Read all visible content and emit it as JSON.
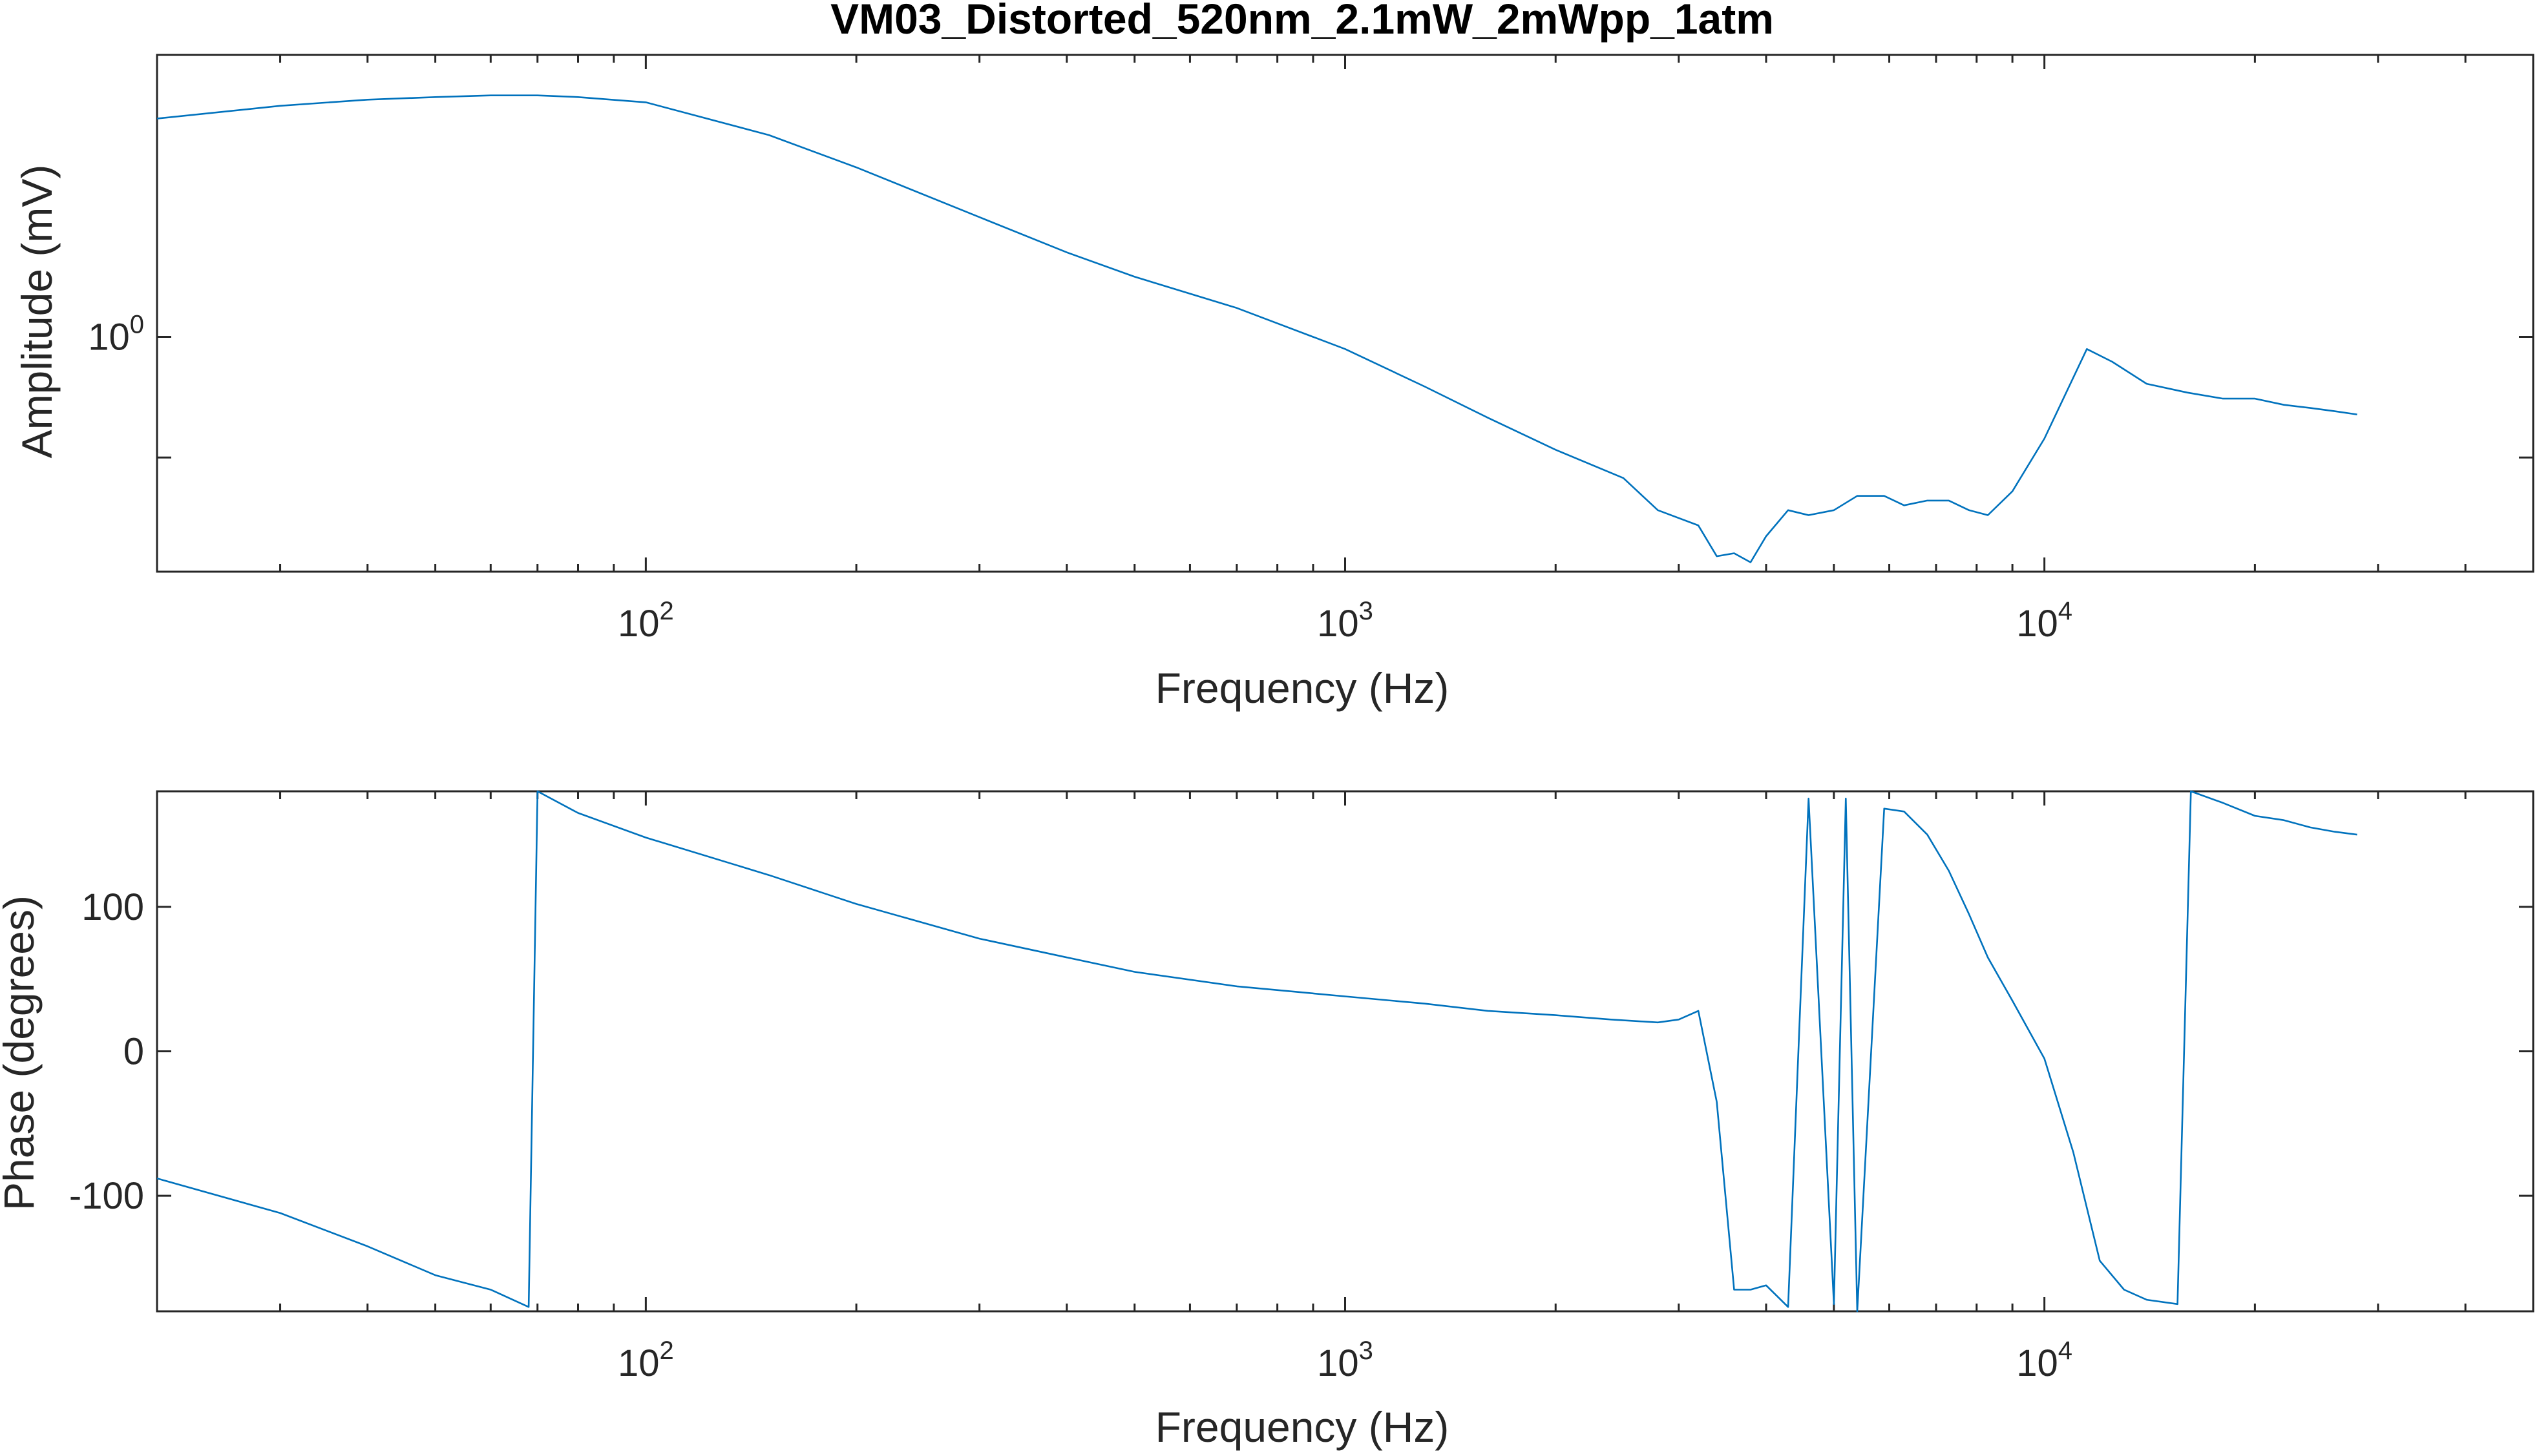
{
  "figure": {
    "title": "VM03_Distorted_520nm_2.1mW_2mWpp_1atm",
    "line_color": "#0072BD",
    "axes_color": "#262626"
  },
  "chart_data": [
    {
      "type": "line",
      "xlabel": "Frequency (Hz)",
      "ylabel": "Amplitude (mV)",
      "xscale": "log",
      "yscale": "log",
      "xlim": [
        20,
        50000
      ],
      "ylim": [
        0.37,
        3.3
      ],
      "grid": false,
      "xticks": [
        {
          "value": 100,
          "base": "10",
          "exp": "2"
        },
        {
          "value": 1000,
          "base": "10",
          "exp": "3"
        },
        {
          "value": 10000,
          "base": "10",
          "exp": "4"
        }
      ],
      "yticks": [
        {
          "value": 1.0,
          "base": "10",
          "exp": "0"
        },
        {
          "value": 0.6,
          "base": "",
          "exp": ""
        }
      ],
      "series": [
        {
          "color": "#0072BD",
          "x": [
            20,
            30,
            40,
            50,
            60,
            70,
            80,
            100,
            150,
            200,
            300,
            400,
            500,
            700,
            1000,
            1300,
            1600,
            2000,
            2500,
            2800,
            3200,
            3400,
            3600,
            3800,
            4000,
            4300,
            4600,
            5000,
            5400,
            5900,
            6300,
            6800,
            7300,
            7800,
            8300,
            9000,
            10000,
            11500,
            12500,
            14000,
            16000,
            18000,
            20000,
            22000,
            24000,
            26000,
            28000
          ],
          "y": [
            2.52,
            2.66,
            2.73,
            2.76,
            2.78,
            2.78,
            2.76,
            2.7,
            2.35,
            2.05,
            1.66,
            1.43,
            1.29,
            1.13,
            0.95,
            0.81,
            0.71,
            0.62,
            0.55,
            0.48,
            0.45,
            0.395,
            0.4,
            0.385,
            0.43,
            0.48,
            0.47,
            0.48,
            0.51,
            0.51,
            0.49,
            0.5,
            0.5,
            0.48,
            0.47,
            0.52,
            0.65,
            0.95,
            0.9,
            0.82,
            0.79,
            0.77,
            0.77,
            0.75,
            0.74,
            0.73,
            0.72
          ]
        }
      ]
    },
    {
      "type": "line",
      "xlabel": "Frequency (Hz)",
      "ylabel": "Phase (degrees)",
      "xscale": "log",
      "yscale": "linear",
      "xlim": [
        20,
        50000
      ],
      "ylim": [
        -180,
        180
      ],
      "grid": false,
      "xticks": [
        {
          "value": 100,
          "base": "10",
          "exp": "2"
        },
        {
          "value": 1000,
          "base": "10",
          "exp": "3"
        },
        {
          "value": 10000,
          "base": "10",
          "exp": "4"
        }
      ],
      "yticks": [
        {
          "value": 100,
          "label": "100"
        },
        {
          "value": 0,
          "label": "0"
        },
        {
          "value": -100,
          "label": "-100"
        }
      ],
      "series": [
        {
          "color": "#0072BD",
          "x": [
            20,
            30,
            40,
            50,
            60,
            68,
            70,
            80,
            100,
            150,
            200,
            300,
            400,
            500,
            700,
            1000,
            1300,
            1600,
            2000,
            2400,
            2800,
            3000,
            3200,
            3400,
            3600,
            3800,
            4000,
            4300,
            4600,
            5000,
            5200,
            5400,
            5900,
            6300,
            6800,
            7300,
            7800,
            8300,
            9000,
            10000,
            11000,
            12000,
            13000,
            14000,
            15500,
            16200,
            18000,
            20000,
            22000,
            24000,
            26000,
            28000
          ],
          "y": [
            -88,
            -112,
            -135,
            -155,
            -165,
            -177,
            180,
            165,
            148,
            122,
            102,
            78,
            65,
            55,
            45,
            38,
            33,
            28,
            25,
            22,
            20,
            22,
            28,
            -35,
            -165,
            -165,
            -162,
            -177,
            175,
            -175,
            175,
            -180,
            168,
            166,
            150,
            125,
            95,
            65,
            35,
            -5,
            -70,
            -145,
            -165,
            -172,
            -175,
            180,
            172,
            163,
            160,
            155,
            152,
            150
          ]
        }
      ]
    }
  ]
}
